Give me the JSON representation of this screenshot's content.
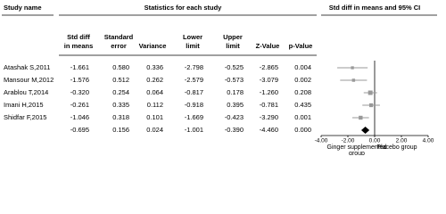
{
  "chart_data": {
    "type": "forest",
    "headers": {
      "study": "Study name",
      "stats": "Statistics for each study",
      "plot": "Std diff in means and 95% CI"
    },
    "categories": [
      "Atashak S,2011",
      "Mansour M,2012",
      "Arablou T,2014",
      "Imani H,2015",
      "Shidfar F,2015",
      null
    ],
    "columns": [
      {
        "label": [
          "Std diff",
          "in means"
        ],
        "values": [
          -1.661,
          -1.576,
          -0.32,
          -0.261,
          -1.046,
          -0.695
        ],
        "value_labels": [
          "-1.661",
          "-1.576",
          "-0.320",
          "-0.261",
          "-1.046",
          "-0.695"
        ]
      },
      {
        "label": [
          "Standard",
          "error"
        ],
        "values": [
          0.58,
          0.512,
          0.254,
          0.335,
          0.318,
          0.156
        ],
        "value_labels": [
          "0.580",
          "0.512",
          "0.254",
          "0.335",
          "0.318",
          "0.156"
        ]
      },
      {
        "label": [
          "Variance"
        ],
        "values": [
          0.336,
          0.262,
          0.064,
          0.112,
          0.101,
          0.024
        ],
        "value_labels": [
          "0.336",
          "0.262",
          "0.064",
          "0.112",
          "0.101",
          "0.024"
        ]
      },
      {
        "label": [
          "Lower",
          "limit"
        ],
        "values": [
          -2.798,
          -2.579,
          -0.817,
          -0.918,
          -1.669,
          -1.001
        ],
        "value_labels": [
          "-2.798",
          "-2.579",
          "-0.817",
          "-0.918",
          "-1.669",
          "-1.001"
        ]
      },
      {
        "label": [
          "Upper",
          "limit"
        ],
        "values": [
          -0.525,
          -0.573,
          0.178,
          0.395,
          -0.423,
          -0.39
        ],
        "value_labels": [
          "-0.525",
          "-0.573",
          "0.178",
          "0.395",
          "-0.423",
          "-0.390"
        ]
      },
      {
        "label": [
          "Z-Value"
        ],
        "values": [
          -2.865,
          -3.079,
          -1.26,
          -0.781,
          -3.29,
          -4.46
        ],
        "value_labels": [
          "-2.865",
          "-3.079",
          "-1.260",
          "-0.781",
          "-3.290",
          "-4.460"
        ]
      },
      {
        "label": [
          "p-Value"
        ],
        "values": [
          0.004,
          0.002,
          0.208,
          0.435,
          0.001,
          0
        ],
        "value_labels": [
          "0.004",
          "0.002",
          "0.208",
          "0.435",
          "0.001",
          "0.000"
        ]
      }
    ],
    "xlim": [
      -4,
      4
    ],
    "xticks": [
      {
        "value": -4,
        "label": "-4.00"
      },
      {
        "value": -2,
        "label": "-2.00"
      },
      {
        "value": 0,
        "label": "0.00"
      },
      {
        "value": 2,
        "label": "2.00"
      },
      {
        "value": 4,
        "label": "4.00"
      }
    ],
    "group_labels": {
      "left": [
        "Ginger supplemented",
        "group"
      ],
      "right": "Placebo group"
    },
    "color": "#999999",
    "summary_color": "#000000"
  }
}
